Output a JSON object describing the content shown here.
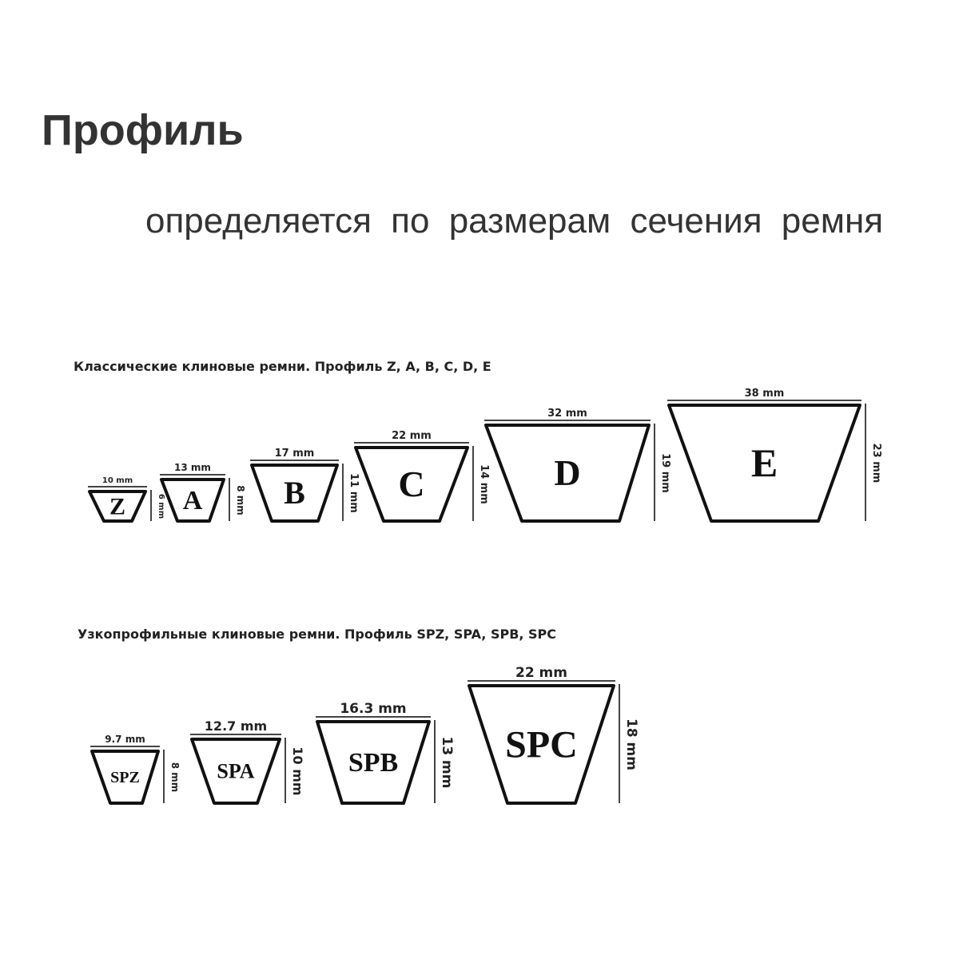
{
  "heading": "Профиль",
  "paragraph": "определяется по размерам сечения ремня",
  "classic": {
    "caption": "Классические клиновые ремни. Профиль Z, A, B, C, D, E",
    "profiles": [
      {
        "name": "Z",
        "width": "10 mm",
        "height": "6 mm"
      },
      {
        "name": "A",
        "width": "13 mm",
        "height": "8 mm"
      },
      {
        "name": "B",
        "width": "17 mm",
        "height": "11 mm"
      },
      {
        "name": "C",
        "width": "22 mm",
        "height": "14 mm"
      },
      {
        "name": "D",
        "width": "32 mm",
        "height": "19 mm"
      },
      {
        "name": "E",
        "width": "38 mm",
        "height": "23 mm"
      }
    ]
  },
  "narrow": {
    "caption": "Узкопрофильные клиновые ремни. Профиль SPZ, SPA, SPB, SPC",
    "profiles": [
      {
        "name": "SPZ",
        "width": "9.7 mm",
        "height": "8 mm"
      },
      {
        "name": "SPA",
        "width": "12.7 mm",
        "height": "10 mm"
      },
      {
        "name": "SPB",
        "width": "16.3 mm",
        "height": "13 mm"
      },
      {
        "name": "SPC",
        "width": "22 mm",
        "height": "18 mm"
      }
    ]
  }
}
